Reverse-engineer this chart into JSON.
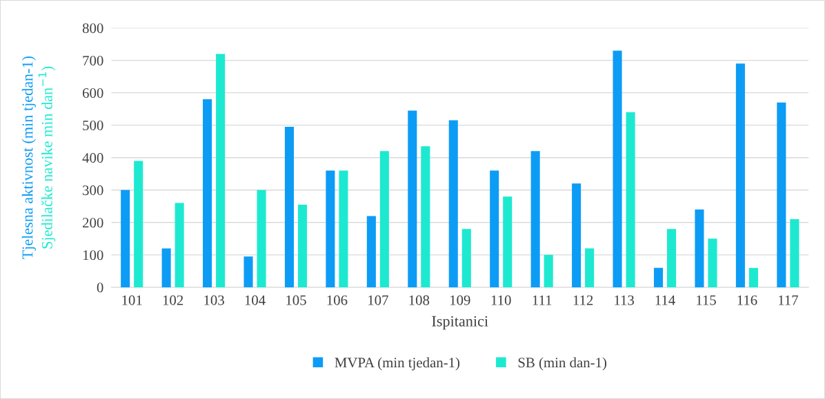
{
  "chart_data": {
    "type": "bar",
    "xlabel": "Ispitanici",
    "ylabel": "Tjelesna aktivnost (min tjedan-1)\nSjedilačke navike min dan$^{−1}$)",
    "categories": [
      "101",
      "102",
      "103",
      "104",
      "105",
      "106",
      "107",
      "108",
      "109",
      "110",
      "111",
      "112",
      "113",
      "114",
      "115",
      "116",
      "117"
    ],
    "series": [
      {
        "name": "MVPA (min tjedan-1)",
        "color": "#0d9cf5",
        "values": [
          300,
          120,
          580,
          95,
          495,
          360,
          220,
          545,
          515,
          360,
          420,
          320,
          730,
          60,
          240,
          690,
          570
        ]
      },
      {
        "name": "SB (min dan-1)",
        "color": "#1de9d0",
        "values": [
          390,
          260,
          720,
          300,
          255,
          360,
          420,
          435,
          180,
          280,
          100,
          120,
          540,
          180,
          150,
          60,
          210
        ]
      }
    ],
    "ylim": [
      0,
      800
    ],
    "yticks": [
      0,
      100,
      200,
      300,
      400,
      500,
      600,
      700,
      800
    ],
    "grid": "y",
    "legend": "bottom"
  }
}
